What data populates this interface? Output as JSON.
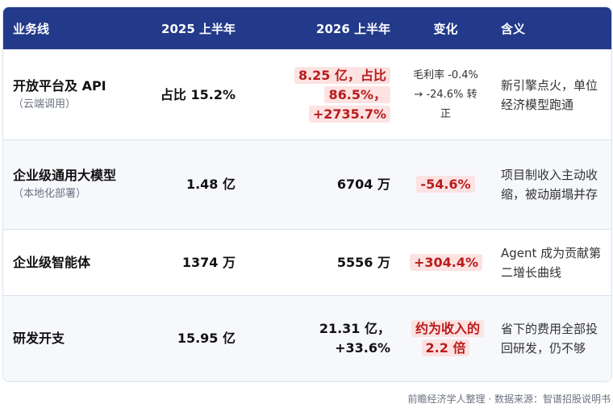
{
  "table": {
    "header": [
      "业务线",
      "2025 上半年",
      "2026 上半年",
      "变化",
      "含义"
    ],
    "rows": [
      {
        "name": "开放平台及 API",
        "sub": "（云端调用）",
        "cells": [
          "占比 15.2%",
          "8.25 亿，占比 86.5%，+2735.7%",
          "毛利率 -0.4% → -24.6% 转正",
          "新引擎点火，单位经济模型跑通"
        ]
      },
      {
        "name": "企业级通用大模型",
        "sub": "（本地化部署）",
        "cells": [
          "1.48 亿",
          "6704 万",
          "-54.6%",
          "项目制收入主动收缩，被动崩塌并存"
        ]
      },
      {
        "name": "企业级智能体",
        "cells": [
          "1374 万",
          "5556 万",
          "+304.4%",
          "Agent 成为贡献第二增长曲线"
        ]
      },
      {
        "name": "研发开支",
        "cells": [
          "15.95 亿",
          "21.31 亿，+33.6%",
          "约为收入的 2.2 倍",
          "省下的费用全部投回研发，仍不够"
        ]
      }
    ]
  },
  "footer": "前瞻经济学人整理 · 数据来源：智谱招股说明书"
}
